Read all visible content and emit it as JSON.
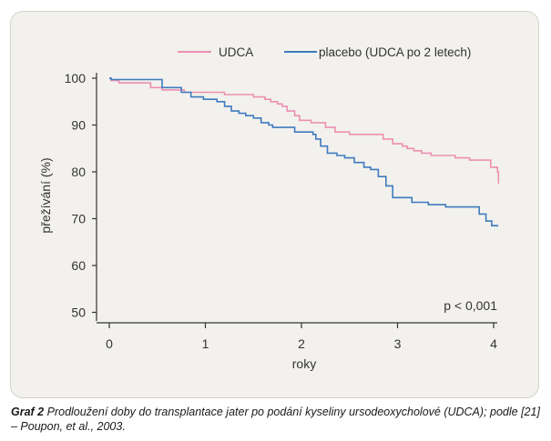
{
  "chart_data": {
    "type": "line",
    "xlabel": "roky",
    "ylabel": "přežívání (%)",
    "xlim": [
      0,
      4
    ],
    "ylim": [
      45,
      102
    ],
    "x_ticks": [
      "0",
      "1",
      "2",
      "3",
      "4"
    ],
    "y_ticks": [
      "100",
      "90",
      "80",
      "70",
      "60",
      "50"
    ],
    "grid": false,
    "legend_position": "top-center",
    "annotation": "p < 0,001",
    "series": [
      {
        "name": "UDCA",
        "color": "#ee8fb3",
        "step": true,
        "points": [
          [
            0.0,
            100
          ],
          [
            0.02,
            99.5
          ],
          [
            0.1,
            99
          ],
          [
            0.43,
            98
          ],
          [
            0.55,
            97.5
          ],
          [
            0.78,
            97
          ],
          [
            1.2,
            96.5
          ],
          [
            1.5,
            96
          ],
          [
            1.62,
            95.5
          ],
          [
            1.68,
            95
          ],
          [
            1.75,
            94.5
          ],
          [
            1.8,
            94
          ],
          [
            1.85,
            93
          ],
          [
            1.93,
            92
          ],
          [
            1.98,
            91
          ],
          [
            2.1,
            90.5
          ],
          [
            2.25,
            89.5
          ],
          [
            2.35,
            88.5
          ],
          [
            2.5,
            88
          ],
          [
            2.85,
            87
          ],
          [
            2.95,
            86
          ],
          [
            3.05,
            85.5
          ],
          [
            3.1,
            85
          ],
          [
            3.17,
            84.5
          ],
          [
            3.25,
            84
          ],
          [
            3.35,
            83.5
          ],
          [
            3.6,
            83
          ],
          [
            3.75,
            82.5
          ],
          [
            3.97,
            81
          ],
          [
            4.04,
            80
          ],
          [
            4.05,
            77.5
          ]
        ]
      },
      {
        "name": "placebo (UDCA po 2 letech)",
        "color": "#3f7bbf",
        "step": true,
        "points": [
          [
            0.0,
            100
          ],
          [
            0.02,
            99.7
          ],
          [
            0.55,
            98
          ],
          [
            0.75,
            97
          ],
          [
            0.85,
            96
          ],
          [
            0.98,
            95.5
          ],
          [
            1.12,
            95
          ],
          [
            1.2,
            94
          ],
          [
            1.27,
            93
          ],
          [
            1.35,
            92.5
          ],
          [
            1.42,
            92
          ],
          [
            1.5,
            91.5
          ],
          [
            1.58,
            90.5
          ],
          [
            1.66,
            90
          ],
          [
            1.7,
            89.5
          ],
          [
            1.93,
            88.5
          ],
          [
            2.12,
            88
          ],
          [
            2.15,
            87
          ],
          [
            2.2,
            85.5
          ],
          [
            2.27,
            84
          ],
          [
            2.37,
            83.5
          ],
          [
            2.45,
            83
          ],
          [
            2.55,
            82
          ],
          [
            2.65,
            81
          ],
          [
            2.72,
            80.5
          ],
          [
            2.8,
            79
          ],
          [
            2.88,
            77
          ],
          [
            2.95,
            74.5
          ],
          [
            3.15,
            73.5
          ],
          [
            3.32,
            73
          ],
          [
            3.5,
            72.5
          ],
          [
            3.85,
            71
          ],
          [
            3.92,
            69.5
          ],
          [
            3.98,
            68.5
          ],
          [
            4.04,
            68.3
          ]
        ]
      }
    ]
  },
  "caption": {
    "lead": "Graf 2",
    "text": "Prodloužení doby do transplantace jater po podání kyseliny ursodeoxycholové (UDCA); podle [21] – Poupon, et al., 2003."
  }
}
